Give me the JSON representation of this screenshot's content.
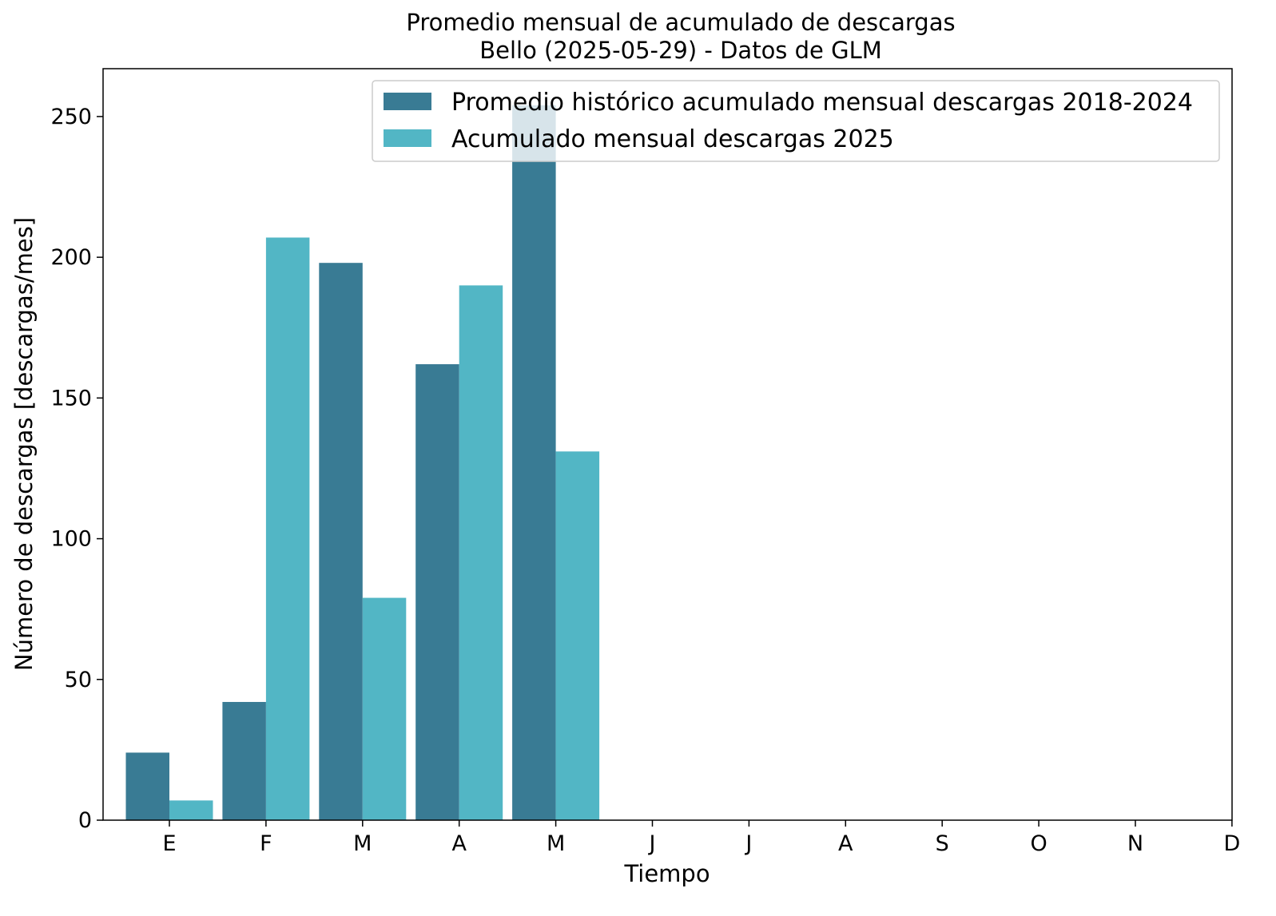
{
  "chart_data": {
    "type": "bar",
    "title": "Promedio mensual de acumulado de descargas",
    "subtitle": "Bello (2025-05-29) - Datos de GLM",
    "xlabel": "Tiempo",
    "ylabel": "Número de descargas [descargas/mes]",
    "categories": [
      "E",
      "F",
      "M",
      "A",
      "M",
      "J",
      "J",
      "A",
      "S",
      "O",
      "N",
      "D"
    ],
    "ylim": [
      0,
      267
    ],
    "yticks": [
      0,
      50,
      100,
      150,
      200,
      250
    ],
    "grid": false,
    "legend_position": "top-right",
    "series": [
      {
        "name": "Promedio histórico acumulado mensual descargas 2018-2024",
        "color": "#397b94",
        "values": [
          24,
          42,
          198,
          162,
          254,
          null,
          null,
          null,
          null,
          null,
          null,
          null
        ]
      },
      {
        "name": "Acumulado mensual descargas 2025",
        "color": "#52b6c5",
        "values": [
          7,
          207,
          79,
          190,
          131,
          null,
          null,
          null,
          null,
          null,
          null,
          null
        ]
      }
    ]
  }
}
